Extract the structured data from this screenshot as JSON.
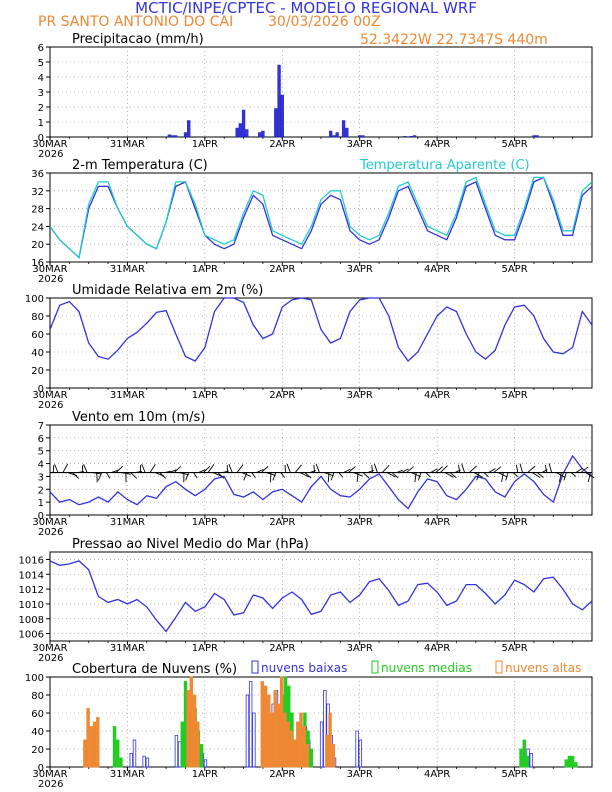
{
  "header": {
    "title": "MCTIC/INPE/CPTEC - MODELO REGIONAL WRF",
    "location": "PR SANTO ANTONIO DO CAI",
    "run": "30/03/2026 00Z",
    "coords": "52.3422W 22.7347S 440m"
  },
  "colors": {
    "blue": "#3333dd",
    "cyan": "#22cccc",
    "green": "#22cc22",
    "orange": "#ee8833",
    "black": "#000000"
  },
  "time_axis": {
    "labels": [
      "30MAR",
      "31MAR",
      "1APR",
      "2APR",
      "3APR",
      "4APR",
      "5APR"
    ],
    "year": "2026",
    "start_hour": 0,
    "end_hour": 168
  },
  "chart_data": [
    {
      "id": "precip",
      "type": "bar",
      "title": "Precipitacao (mm/h)",
      "ylim": [
        0,
        6
      ],
      "yticks": [
        0,
        1,
        2,
        3,
        4,
        5,
        6
      ],
      "x": [
        37,
        38,
        39,
        42,
        43,
        58,
        59,
        60,
        61,
        65,
        66,
        70,
        71,
        72,
        87,
        88,
        89,
        91,
        92,
        96,
        97,
        110,
        112,
        113,
        150,
        151
      ],
      "values": [
        0.15,
        0.1,
        0.1,
        0.3,
        1.1,
        0.6,
        0.9,
        1.8,
        0.5,
        0.3,
        0.4,
        1.9,
        4.8,
        2.8,
        0.4,
        0.1,
        0.3,
        1.1,
        0.6,
        0.1,
        0.1,
        0.05,
        0.05,
        0.1,
        0.1,
        0.1
      ]
    },
    {
      "id": "temp",
      "type": "line",
      "title": "2-m Temperatura (C)",
      "legend": "Temperatura Aparente (C)",
      "ylim": [
        16,
        36
      ],
      "yticks": [
        16,
        20,
        24,
        28,
        32,
        36
      ],
      "series": [
        {
          "name": "2-m Temperatura (C)",
          "color": "blue",
          "x": [
            0,
            3,
            6,
            9,
            12,
            15,
            18,
            21,
            24,
            27,
            30,
            33,
            36,
            39,
            42,
            45,
            48,
            51,
            54,
            57,
            60,
            63,
            66,
            69,
            72,
            75,
            78,
            81,
            84,
            87,
            90,
            93,
            96,
            99,
            102,
            105,
            108,
            111,
            114,
            117,
            120,
            123,
            126,
            129,
            132,
            135,
            138,
            141,
            144,
            147,
            150,
            153,
            156,
            159,
            162,
            165,
            168
          ],
          "values": [
            24,
            21,
            19,
            17,
            28,
            33,
            33,
            28,
            24,
            22,
            20,
            19,
            25,
            33,
            34,
            28,
            22,
            20,
            19,
            20,
            26,
            31,
            29,
            22,
            21,
            20,
            19,
            23,
            29,
            31,
            30,
            23,
            21,
            20,
            21,
            26,
            32,
            33,
            28,
            23,
            22,
            21,
            26,
            33,
            34,
            28,
            22,
            21,
            21,
            27,
            34,
            35,
            29,
            22,
            22,
            31,
            33
          ]
        },
        {
          "name": "Temperatura Aparente (C)",
          "color": "cyan",
          "x": [
            0,
            3,
            6,
            9,
            12,
            15,
            18,
            21,
            24,
            27,
            30,
            33,
            36,
            39,
            42,
            45,
            48,
            51,
            54,
            57,
            60,
            63,
            66,
            69,
            72,
            75,
            78,
            81,
            84,
            87,
            90,
            93,
            96,
            99,
            102,
            105,
            108,
            111,
            114,
            117,
            120,
            123,
            126,
            129,
            132,
            135,
            138,
            141,
            144,
            147,
            150,
            153,
            156,
            159,
            162,
            165,
            168
          ],
          "values": [
            24,
            21,
            19,
            17,
            29,
            34,
            34,
            28,
            24,
            22,
            20,
            19,
            25,
            34,
            34,
            29,
            22,
            21,
            20,
            21,
            27,
            32,
            31,
            23,
            22,
            21,
            20,
            24,
            30,
            32,
            32,
            24,
            22,
            21,
            22,
            27,
            33,
            34,
            29,
            24,
            23,
            22,
            27,
            34,
            35,
            29,
            23,
            22,
            22,
            28,
            35,
            35,
            30,
            23,
            23,
            32,
            34
          ]
        }
      ]
    },
    {
      "id": "rh",
      "type": "line",
      "title": "Umidade Relativa em 2m (%)",
      "ylim": [
        0,
        100
      ],
      "yticks": [
        0,
        20,
        40,
        60,
        80,
        100
      ],
      "series": [
        {
          "name": "Umidade Relativa",
          "color": "blue",
          "x": [
            0,
            3,
            6,
            9,
            12,
            15,
            18,
            21,
            24,
            27,
            30,
            33,
            36,
            39,
            42,
            45,
            48,
            51,
            54,
            57,
            60,
            63,
            66,
            69,
            72,
            75,
            78,
            81,
            84,
            87,
            90,
            93,
            96,
            99,
            102,
            105,
            108,
            111,
            114,
            117,
            120,
            123,
            126,
            129,
            132,
            135,
            138,
            141,
            144,
            147,
            150,
            153,
            156,
            159,
            162,
            165,
            168
          ],
          "values": [
            65,
            92,
            96,
            85,
            50,
            35,
            32,
            42,
            55,
            62,
            72,
            84,
            86,
            60,
            35,
            30,
            45,
            85,
            100,
            100,
            95,
            70,
            55,
            60,
            90,
            98,
            100,
            98,
            65,
            50,
            55,
            85,
            98,
            100,
            100,
            80,
            45,
            30,
            40,
            60,
            80,
            90,
            85,
            60,
            40,
            32,
            42,
            70,
            90,
            92,
            80,
            55,
            40,
            38,
            45,
            85,
            70
          ]
        }
      ]
    },
    {
      "id": "wind",
      "type": "line",
      "title": "Vento em 10m (m/s)",
      "ylim": [
        0,
        7
      ],
      "yticks": [
        0,
        1,
        2,
        3,
        4,
        5,
        6,
        7
      ],
      "series": [
        {
          "name": "Vento em 10m",
          "color": "blue",
          "x": [
            0,
            3,
            6,
            9,
            12,
            15,
            18,
            21,
            24,
            27,
            30,
            33,
            36,
            39,
            42,
            45,
            48,
            51,
            54,
            57,
            60,
            63,
            66,
            69,
            72,
            75,
            78,
            81,
            84,
            87,
            90,
            93,
            96,
            99,
            102,
            105,
            108,
            111,
            114,
            117,
            120,
            123,
            126,
            129,
            132,
            135,
            138,
            141,
            144,
            147,
            150,
            153,
            156,
            159,
            162,
            165,
            168
          ],
          "values": [
            1.8,
            1.0,
            1.2,
            0.8,
            1.0,
            1.4,
            1.0,
            1.8,
            1.2,
            0.8,
            1.5,
            1.3,
            2.2,
            2.6,
            2.0,
            1.5,
            2.0,
            2.8,
            3.0,
            1.6,
            1.4,
            1.8,
            1.2,
            1.8,
            2.0,
            1.5,
            1.0,
            2.2,
            3.0,
            2.0,
            1.5,
            1.4,
            2.0,
            2.8,
            3.2,
            2.2,
            1.2,
            0.5,
            1.8,
            2.8,
            2.6,
            1.5,
            1.2,
            2.0,
            3.0,
            2.8,
            1.8,
            1.4,
            2.6,
            3.2,
            2.6,
            1.6,
            1.0,
            3.2,
            4.6,
            3.6,
            3.0
          ]
        }
      ]
    },
    {
      "id": "pressure",
      "type": "line",
      "title": "Pressao ao Nivel Medio do Mar (hPa)",
      "ylim": [
        1005,
        1017
      ],
      "yticks": [
        1006,
        1008,
        1010,
        1012,
        1014,
        1016
      ],
      "series": [
        {
          "name": "Pressao",
          "color": "blue",
          "x": [
            0,
            3,
            6,
            9,
            12,
            15,
            18,
            21,
            24,
            27,
            30,
            33,
            36,
            39,
            42,
            45,
            48,
            51,
            54,
            57,
            60,
            63,
            66,
            69,
            72,
            75,
            78,
            81,
            84,
            87,
            90,
            93,
            96,
            99,
            102,
            105,
            108,
            111,
            114,
            117,
            120,
            123,
            126,
            129,
            132,
            135,
            138,
            141,
            144,
            147,
            150,
            153,
            156,
            159,
            162,
            165,
            168
          ],
          "values": [
            1015.8,
            1015.2,
            1015.4,
            1015.8,
            1014.6,
            1011.0,
            1010.2,
            1010.6,
            1010.0,
            1010.6,
            1009.6,
            1007.8,
            1006.3,
            1008.2,
            1010.2,
            1009.0,
            1009.6,
            1011.4,
            1010.6,
            1008.5,
            1008.8,
            1011.2,
            1010.8,
            1009.4,
            1010.8,
            1011.6,
            1010.6,
            1008.6,
            1009.0,
            1011.2,
            1011.6,
            1010.2,
            1011.2,
            1013.0,
            1013.4,
            1011.8,
            1009.8,
            1010.4,
            1012.6,
            1012.8,
            1011.6,
            1009.8,
            1010.4,
            1012.6,
            1012.6,
            1011.4,
            1010.0,
            1011.2,
            1013.2,
            1012.6,
            1011.6,
            1013.4,
            1013.6,
            1012.0,
            1010.0,
            1009.2,
            1010.4
          ]
        }
      ]
    },
    {
      "id": "clouds",
      "type": "bar",
      "title": "Cobertura de Nuvens (%)",
      "legend": [
        "nuvens baixas",
        "nuvens medias",
        "nuvens altas"
      ],
      "ylim": [
        0,
        100
      ],
      "yticks": [
        0,
        20,
        40,
        60,
        80,
        100
      ],
      "series": [
        {
          "name": "nuvens baixas",
          "color": "blue",
          "x": [
            26,
            27,
            30,
            31,
            40,
            41,
            43,
            44,
            48,
            49,
            62,
            63,
            64,
            70,
            71,
            80,
            81,
            85,
            86,
            87,
            88,
            89,
            96,
            97,
            149,
            150
          ],
          "values": [
            15,
            30,
            12,
            10,
            35,
            28,
            60,
            55,
            15,
            8,
            80,
            95,
            60,
            70,
            85,
            45,
            30,
            50,
            85,
            70,
            35,
            10,
            40,
            30,
            20,
            15
          ]
        },
        {
          "name": "nuvens medias",
          "color": "green",
          "x": [
            20,
            21,
            22,
            41,
            42,
            43,
            44,
            45,
            46,
            47,
            71,
            72,
            73,
            74,
            75,
            76,
            78,
            79,
            80,
            81,
            146,
            147,
            148,
            160,
            161,
            162,
            163
          ],
          "values": [
            45,
            30,
            10,
            50,
            95,
            60,
            70,
            65,
            40,
            25,
            70,
            80,
            100,
            90,
            60,
            30,
            25,
            60,
            40,
            20,
            20,
            30,
            12,
            8,
            12,
            12,
            5
          ]
        },
        {
          "name": "nuvens altas",
          "color": "orange",
          "x": [
            10,
            11,
            12,
            13,
            14,
            42,
            43,
            44,
            45,
            65,
            66,
            67,
            68,
            69,
            70,
            71,
            72,
            73,
            74,
            75,
            76,
            77,
            78,
            79,
            85,
            86,
            87
          ],
          "values": [
            30,
            65,
            45,
            50,
            55,
            85,
            100,
            80,
            50,
            95,
            90,
            80,
            60,
            85,
            70,
            100,
            60,
            50,
            40,
            30,
            50,
            60,
            45,
            25,
            35,
            60,
            25
          ]
        }
      ]
    }
  ]
}
